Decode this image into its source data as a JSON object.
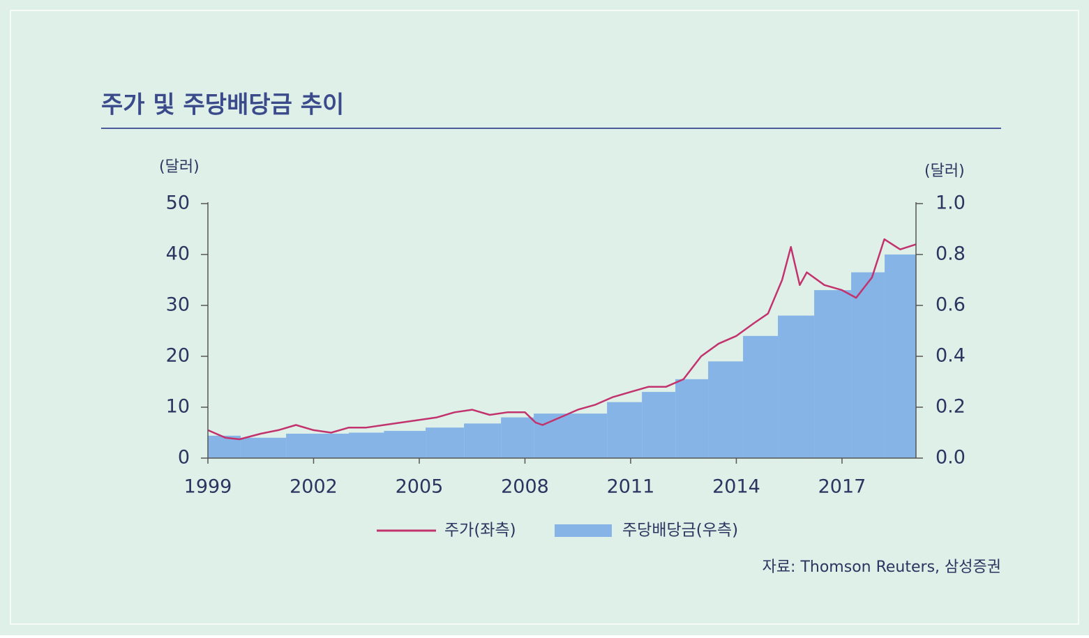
{
  "chart_data": {
    "type": "combo",
    "title": "주가 및 주당배당금 추이",
    "y_label": "(달러)",
    "y2_label": "(달러)",
    "source": "자료: Thomson Reuters, 삼성증권",
    "xlim": [
      1999,
      2019.1
    ],
    "xticks": [
      1999,
      2002,
      2005,
      2008,
      2011,
      2014,
      2017
    ],
    "ylim": [
      0,
      50
    ],
    "yticks": [
      0,
      10,
      20,
      30,
      40,
      50
    ],
    "y2lim": [
      0,
      1
    ],
    "y2ticks": [
      {
        "value": 0,
        "label": "0.0"
      },
      0.2,
      0.4,
      0.6,
      0.8,
      {
        "value": 1,
        "label": "1.0"
      }
    ],
    "series": [
      {
        "name": "주가(좌측)",
        "type": "line",
        "color": "#c2336e",
        "x": [
          1999.0,
          1999.5,
          1999.9,
          2000.5,
          2001.0,
          2001.5,
          2002.0,
          2002.5,
          2003.0,
          2003.5,
          2004.0,
          2004.5,
          2005.0,
          2005.5,
          2006.0,
          2006.5,
          2007.0,
          2007.5,
          2008.0,
          2008.3,
          2008.5,
          2009.0,
          2009.5,
          2010.0,
          2010.5,
          2011.0,
          2011.5,
          2012.0,
          2012.5,
          2013.0,
          2013.5,
          2014.0,
          2014.5,
          2014.9,
          2015.3,
          2015.55,
          2015.8,
          2016.0,
          2016.5,
          2017.0,
          2017.4,
          2017.85,
          2018.2,
          2018.65,
          2019.1
        ],
        "values": [
          5.5,
          4.0,
          3.7,
          4.8,
          5.5,
          6.5,
          5.5,
          5.0,
          6.0,
          6.0,
          6.5,
          7.0,
          7.5,
          8.0,
          9.0,
          9.5,
          8.5,
          9.0,
          9.0,
          7.0,
          6.5,
          8.0,
          9.5,
          10.5,
          12.0,
          13.0,
          14.0,
          14.0,
          15.5,
          20,
          22.5,
          24,
          26.5,
          28.4,
          35,
          41.5,
          34,
          36.5,
          34,
          33,
          31.5,
          35.5,
          43,
          41,
          42
        ]
      },
      {
        "name": "주당배당금(우측)",
        "type": "step",
        "axis": "y2",
        "color": "#86b4e6",
        "bins": [
          1999.0,
          1999.93,
          2001.22,
          2003.0,
          2004.0,
          2005.18,
          2006.27,
          2007.32,
          2008.25,
          2010.33,
          2011.32,
          2012.27,
          2013.2,
          2014.19,
          2015.18,
          2016.21,
          2017.26,
          2018.21,
          2019.1
        ],
        "values": [
          0.088,
          0.08,
          0.096,
          0.1,
          0.107,
          0.12,
          0.136,
          0.16,
          0.175,
          0.22,
          0.26,
          0.31,
          0.38,
          0.48,
          0.56,
          0.66,
          0.73,
          0.8
        ]
      }
    ]
  }
}
